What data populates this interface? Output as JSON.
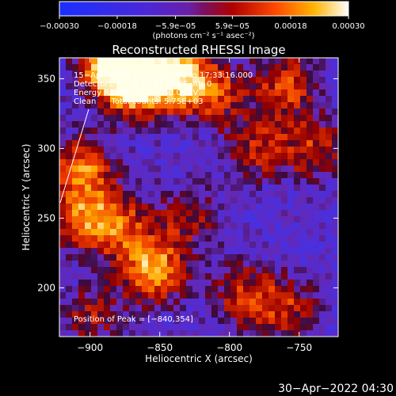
{
  "chart_data": {
    "type": "heatmap",
    "title": "Reconstructed RHESSI Image",
    "xlabel": "Heliocentric X (arcsec)",
    "ylabel": "Heliocentric Y (arcsec)",
    "xlim": [
      -922,
      -722
    ],
    "ylim": [
      165,
      365
    ],
    "x_ticks": [
      -900,
      -850,
      -800,
      -750
    ],
    "x_tick_labels": [
      "−900",
      "−850",
      "−800",
      "−750"
    ],
    "y_ticks": [
      200,
      250,
      300,
      350
    ],
    "y_tick_labels": [
      "200",
      "250",
      "300",
      "350"
    ],
    "colorbar": {
      "range": [
        -0.0003,
        0.0003
      ],
      "ticks": [
        -0.0003,
        -0.00018,
        -5.9e-05,
        5.9e-05,
        0.00018,
        0.0003
      ],
      "tick_labels": [
        "−0.00030",
        "−0.00018",
        "−5.9e−05",
        "5.9e−05",
        "0.00018",
        "0.00030"
      ],
      "unit_label": "(photons cm⁻² s⁻¹ asec⁻²)"
    },
    "info_lines": [
      "15−Apr−2004 17:27:16.000 to 17:33:16.000",
      "Detectors: 3F 4F 5F 6F 7F 8F, Att 0",
      "Energy Range: 25.0 − 50.0 keV",
      "Clean      Total counts: 5.75E+03"
    ],
    "peak_label": "Position of Peak = [−840,354]",
    "peak_position": [
      -840,
      354
    ],
    "sources": [
      {
        "x": -885,
        "y": 360,
        "strength": 1.0
      },
      {
        "x": -840,
        "y": 354,
        "strength": 1.0
      },
      {
        "x": -868,
        "y": 345,
        "strength": 0.9
      },
      {
        "x": -855,
        "y": 213,
        "strength": 0.9
      },
      {
        "x": -905,
        "y": 285,
        "strength": 0.7
      },
      {
        "x": -905,
        "y": 250,
        "strength": 0.6
      },
      {
        "x": -880,
        "y": 245,
        "strength": 0.6
      },
      {
        "x": -812,
        "y": 340,
        "strength": 0.6
      },
      {
        "x": -760,
        "y": 345,
        "strength": 0.6
      },
      {
        "x": -780,
        "y": 300,
        "strength": 0.5
      },
      {
        "x": -740,
        "y": 300,
        "strength": 0.5
      },
      {
        "x": -790,
        "y": 195,
        "strength": 0.5
      },
      {
        "x": -760,
        "y": 185,
        "strength": 0.5
      },
      {
        "x": -900,
        "y": 180,
        "strength": 0.4
      },
      {
        "x": -830,
        "y": 250,
        "strength": 0.4
      }
    ],
    "grid": false
  },
  "footer": {
    "timestamp": "30−Apr−2022 04:30"
  }
}
